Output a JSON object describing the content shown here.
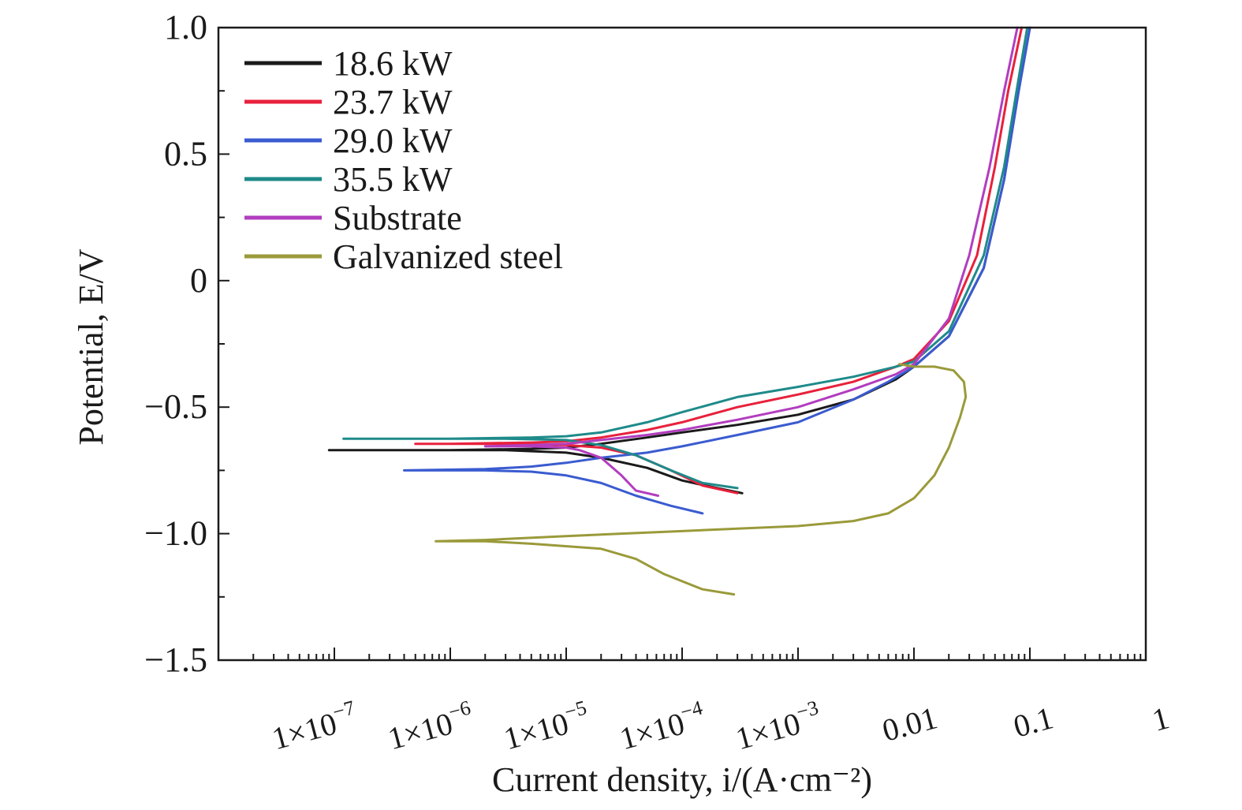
{
  "chart_data": {
    "type": "line",
    "title": "",
    "xlabel": "Current density, i/(A·cm⁻²)",
    "ylabel": "Potential, E/V",
    "x_scale": "log",
    "xlim": [
      1e-08,
      1
    ],
    "ylim": [
      -1.5,
      1.0
    ],
    "x_ticks": [
      {
        "value": 1e-07,
        "base": "1×10",
        "exp": "−7"
      },
      {
        "value": 1e-06,
        "base": "1×10",
        "exp": "−6"
      },
      {
        "value": 1e-05,
        "base": "1×10",
        "exp": "−5"
      },
      {
        "value": 0.0001,
        "base": "1×10",
        "exp": "−4"
      },
      {
        "value": 0.001,
        "base": "1×10",
        "exp": "−3"
      },
      {
        "value": 0.01,
        "base": "0.01",
        "exp": ""
      },
      {
        "value": 0.1,
        "base": "0.1",
        "exp": ""
      },
      {
        "value": 1,
        "base": "1",
        "exp": ""
      }
    ],
    "y_ticks": [
      {
        "value": 1.0,
        "label": "1.0"
      },
      {
        "value": 0.5,
        "label": "0.5"
      },
      {
        "value": 0,
        "label": "0"
      },
      {
        "value": -0.5,
        "label": "−0.5"
      },
      {
        "value": -1.0,
        "label": "−1.0"
      },
      {
        "value": -1.5,
        "label": "−1.5"
      }
    ],
    "grid": false,
    "legend_position": "top-left",
    "series": [
      {
        "name": "18.6 kW",
        "color": "#1a1a1a",
        "points": [
          [
            0.00033,
            -0.84
          ],
          [
            0.0002,
            -0.82
          ],
          [
            0.0001,
            -0.79
          ],
          [
            5e-05,
            -0.74
          ],
          [
            2e-05,
            -0.7
          ],
          [
            1e-05,
            -0.68
          ],
          [
            3e-06,
            -0.67
          ],
          [
            1e-06,
            -0.67
          ],
          [
            3e-07,
            -0.67
          ],
          [
            9e-08,
            -0.67
          ],
          [
            1e-06,
            -0.67
          ],
          [
            5e-06,
            -0.665
          ],
          [
            1e-05,
            -0.66
          ],
          [
            2e-05,
            -0.645
          ],
          [
            5e-05,
            -0.62
          ],
          [
            0.0001,
            -0.6
          ],
          [
            0.0003,
            -0.57
          ],
          [
            0.001,
            -0.53
          ],
          [
            0.003,
            -0.47
          ],
          [
            0.007,
            -0.39
          ],
          [
            0.01,
            -0.34
          ],
          [
            0.02,
            -0.22
          ],
          [
            0.04,
            0.05
          ],
          [
            0.06,
            0.4
          ],
          [
            0.08,
            0.75
          ],
          [
            0.1,
            1.0
          ]
        ]
      },
      {
        "name": "23.7 kW",
        "color": "#e8213c",
        "points": [
          [
            0.0003,
            -0.84
          ],
          [
            0.00015,
            -0.81
          ],
          [
            8e-05,
            -0.75
          ],
          [
            4e-05,
            -0.69
          ],
          [
            2e-05,
            -0.66
          ],
          [
            1e-05,
            -0.65
          ],
          [
            3e-06,
            -0.645
          ],
          [
            1e-06,
            -0.645
          ],
          [
            5e-07,
            -0.645
          ],
          [
            1e-06,
            -0.645
          ],
          [
            5e-06,
            -0.64
          ],
          [
            1e-05,
            -0.635
          ],
          [
            2e-05,
            -0.62
          ],
          [
            5e-05,
            -0.59
          ],
          [
            0.0001,
            -0.56
          ],
          [
            0.0003,
            -0.5
          ],
          [
            0.001,
            -0.45
          ],
          [
            0.003,
            -0.4
          ],
          [
            0.007,
            -0.34
          ],
          [
            0.01,
            -0.31
          ],
          [
            0.02,
            -0.16
          ],
          [
            0.035,
            0.1
          ],
          [
            0.05,
            0.45
          ],
          [
            0.065,
            0.75
          ],
          [
            0.085,
            1.0
          ]
        ]
      },
      {
        "name": "29.0 kW",
        "color": "#3a5bd0",
        "points": [
          [
            0.00015,
            -0.92
          ],
          [
            8e-05,
            -0.89
          ],
          [
            4e-05,
            -0.85
          ],
          [
            2e-05,
            -0.8
          ],
          [
            1e-05,
            -0.77
          ],
          [
            5e-06,
            -0.755
          ],
          [
            2e-06,
            -0.75
          ],
          [
            4e-07,
            -0.75
          ],
          [
            2e-06,
            -0.745
          ],
          [
            5e-06,
            -0.735
          ],
          [
            1e-05,
            -0.72
          ],
          [
            2e-05,
            -0.7
          ],
          [
            5e-05,
            -0.68
          ],
          [
            0.0001,
            -0.655
          ],
          [
            0.0003,
            -0.61
          ],
          [
            0.001,
            -0.56
          ],
          [
            0.003,
            -0.47
          ],
          [
            0.006,
            -0.4
          ],
          [
            0.01,
            -0.34
          ],
          [
            0.02,
            -0.22
          ],
          [
            0.04,
            0.05
          ],
          [
            0.06,
            0.4
          ],
          [
            0.08,
            0.75
          ],
          [
            0.1,
            1.0
          ]
        ]
      },
      {
        "name": "35.5 kW",
        "color": "#1f8a8a",
        "points": [
          [
            0.0003,
            -0.82
          ],
          [
            0.00015,
            -0.8
          ],
          [
            8e-05,
            -0.75
          ],
          [
            4e-05,
            -0.69
          ],
          [
            2e-05,
            -0.65
          ],
          [
            1e-05,
            -0.63
          ],
          [
            3e-06,
            -0.625
          ],
          [
            1e-06,
            -0.625
          ],
          [
            1.2e-07,
            -0.625
          ],
          [
            1e-06,
            -0.625
          ],
          [
            5e-06,
            -0.62
          ],
          [
            1e-05,
            -0.615
          ],
          [
            2e-05,
            -0.6
          ],
          [
            5e-05,
            -0.56
          ],
          [
            0.0001,
            -0.52
          ],
          [
            0.0003,
            -0.46
          ],
          [
            0.001,
            -0.42
          ],
          [
            0.003,
            -0.38
          ],
          [
            0.007,
            -0.34
          ],
          [
            0.01,
            -0.32
          ],
          [
            0.02,
            -0.2
          ],
          [
            0.04,
            0.1
          ],
          [
            0.06,
            0.45
          ],
          [
            0.08,
            0.8
          ],
          [
            0.095,
            1.0
          ]
        ]
      },
      {
        "name": "Substrate",
        "color": "#b23dbf",
        "points": [
          [
            6.2e-05,
            -0.85
          ],
          [
            4e-05,
            -0.83
          ],
          [
            3e-05,
            -0.77
          ],
          [
            2e-05,
            -0.7
          ],
          [
            1.3e-05,
            -0.67
          ],
          [
            1e-05,
            -0.66
          ],
          [
            5e-06,
            -0.655
          ],
          [
            2e-06,
            -0.655
          ],
          [
            5e-06,
            -0.65
          ],
          [
            1e-05,
            -0.645
          ],
          [
            2e-05,
            -0.63
          ],
          [
            5e-05,
            -0.61
          ],
          [
            0.0001,
            -0.59
          ],
          [
            0.0003,
            -0.55
          ],
          [
            0.001,
            -0.5
          ],
          [
            0.003,
            -0.43
          ],
          [
            0.007,
            -0.37
          ],
          [
            0.01,
            -0.33
          ],
          [
            0.02,
            -0.15
          ],
          [
            0.03,
            0.1
          ],
          [
            0.045,
            0.45
          ],
          [
            0.06,
            0.75
          ],
          [
            0.078,
            1.0
          ]
        ]
      },
      {
        "name": "Galvanized steel",
        "color": "#9a9a3a",
        "points": [
          [
            0.00028,
            -1.24
          ],
          [
            0.00015,
            -1.22
          ],
          [
            7e-05,
            -1.16
          ],
          [
            4e-05,
            -1.1
          ],
          [
            2e-05,
            -1.06
          ],
          [
            5e-06,
            -1.04
          ],
          [
            2e-06,
            -1.03
          ],
          [
            7.5e-07,
            -1.03
          ],
          [
            2e-06,
            -1.025
          ],
          [
            1e-05,
            -1.01
          ],
          [
            3e-05,
            -1.0
          ],
          [
            0.0001,
            -0.99
          ],
          [
            0.0003,
            -0.98
          ],
          [
            0.001,
            -0.97
          ],
          [
            0.003,
            -0.95
          ],
          [
            0.006,
            -0.92
          ],
          [
            0.01,
            -0.86
          ],
          [
            0.015,
            -0.77
          ],
          [
            0.02,
            -0.66
          ],
          [
            0.025,
            -0.54
          ],
          [
            0.028,
            -0.46
          ],
          [
            0.027,
            -0.4
          ],
          [
            0.022,
            -0.355
          ],
          [
            0.015,
            -0.34
          ],
          [
            0.01,
            -0.34
          ],
          [
            0.0075,
            -0.33
          ]
        ]
      }
    ]
  }
}
